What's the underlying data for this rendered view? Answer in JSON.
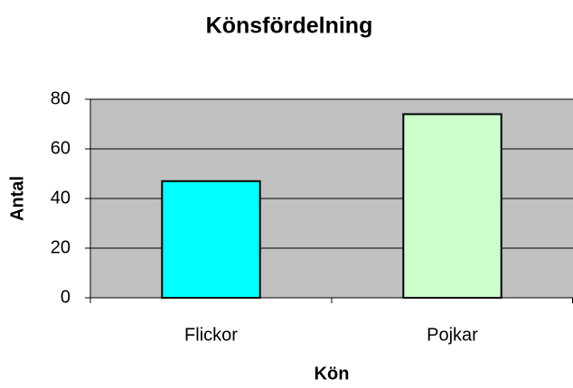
{
  "chart_data": {
    "type": "bar",
    "title": "Könsfördelning",
    "x_label": "Kön",
    "y_label": "Antal",
    "categories": [
      "Flickor",
      "Pojkar"
    ],
    "values": [
      47,
      74
    ],
    "colors": [
      "#00ffff",
      "#ccffcc"
    ],
    "ylim": [
      0,
      80
    ],
    "yticks": [
      0,
      20,
      40,
      60,
      80
    ],
    "grid": true
  }
}
